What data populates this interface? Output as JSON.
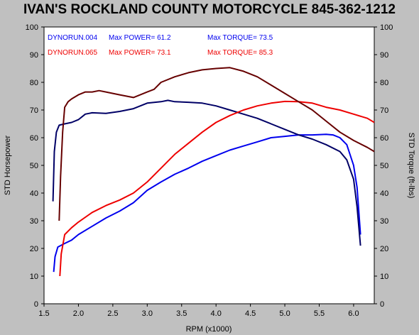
{
  "chart_data": {
    "type": "line",
    "title": "IVAN'S ROCKLAND COUNTY MOTORCYCLE 845-362-1212",
    "xlabel": "RPM (x1000)",
    "ylabel_left": "STD Horsepower",
    "ylabel_right": "STD Torque (ft-lbs)",
    "xlim": [
      1.5,
      6.3
    ],
    "ylim": [
      0,
      100
    ],
    "x_ticks": [
      "1.5",
      "2.0",
      "2.5",
      "3.0",
      "3.5",
      "4.0",
      "4.5",
      "5.0",
      "5.5",
      "6.0"
    ],
    "y_ticks": [
      "0",
      "10",
      "20",
      "30",
      "40",
      "50",
      "60",
      "70",
      "80",
      "90",
      "100"
    ],
    "grid": false,
    "legend_rows": [
      {
        "run": "DYNORUN.004",
        "power": "Max POWER= 61.2",
        "torque": "Max TORQUE= 73.5",
        "color": "#0000ee"
      },
      {
        "run": "DYNORUN.065",
        "power": "Max POWER= 73.1",
        "torque": "Max TORQUE= 85.3",
        "color": "#ee0000"
      }
    ],
    "series": [
      {
        "run": "DYNORUN.004",
        "measure": "power",
        "color": "#0000ee",
        "x": [
          1.64,
          1.66,
          1.7,
          1.8,
          1.9,
          2.0,
          2.2,
          2.4,
          2.6,
          2.8,
          3.0,
          3.2,
          3.4,
          3.6,
          3.8,
          4.0,
          4.2,
          4.4,
          4.6,
          4.8,
          5.0,
          5.2,
          5.4,
          5.6,
          5.7,
          5.8,
          5.9,
          6.0,
          6.05,
          6.1
        ],
        "y": [
          11.5,
          17,
          20.5,
          21.8,
          23,
          25,
          28,
          31,
          33.5,
          36.5,
          41,
          44,
          46.8,
          49,
          51.5,
          53.5,
          55.5,
          57,
          58.5,
          60,
          60.5,
          61,
          61,
          61.2,
          61,
          60,
          57.5,
          50,
          42,
          25
        ]
      },
      {
        "run": "DYNORUN.004",
        "measure": "torque",
        "color": "#000066",
        "x": [
          1.63,
          1.65,
          1.68,
          1.72,
          1.8,
          1.9,
          2.0,
          2.1,
          2.2,
          2.4,
          2.6,
          2.8,
          3.0,
          3.2,
          3.3,
          3.4,
          3.6,
          3.8,
          4.0,
          4.2,
          4.4,
          4.6,
          4.8,
          5.0,
          5.2,
          5.4,
          5.6,
          5.8,
          5.9,
          6.0,
          6.05,
          6.1
        ],
        "y": [
          37,
          55,
          62,
          64.5,
          65,
          65.5,
          66.5,
          68.5,
          69,
          68.8,
          69.5,
          70.5,
          72.5,
          73,
          73.5,
          73,
          72.8,
          72.5,
          71.5,
          70,
          68.5,
          67,
          65,
          63,
          61,
          59.5,
          57.5,
          55,
          52,
          45,
          35,
          21
        ]
      },
      {
        "run": "DYNORUN.065",
        "measure": "power",
        "color": "#ee0000",
        "x": [
          1.73,
          1.75,
          1.8,
          1.9,
          2.0,
          2.2,
          2.4,
          2.6,
          2.8,
          3.0,
          3.2,
          3.4,
          3.6,
          3.8,
          4.0,
          4.2,
          4.4,
          4.6,
          4.8,
          5.0,
          5.2,
          5.4,
          5.6,
          5.8,
          6.0,
          6.2,
          6.3
        ],
        "y": [
          10,
          18,
          25,
          27.5,
          29.5,
          33,
          35.5,
          37.5,
          40,
          44,
          49,
          54,
          58,
          62,
          65.5,
          68,
          70,
          71.5,
          72.5,
          73.1,
          73,
          72.5,
          71,
          70,
          68.5,
          67,
          65.5
        ]
      },
      {
        "run": "DYNORUN.065",
        "measure": "torque",
        "color": "#660000",
        "x": [
          1.72,
          1.74,
          1.77,
          1.8,
          1.85,
          1.9,
          2.0,
          2.1,
          2.2,
          2.3,
          2.4,
          2.6,
          2.8,
          3.0,
          3.1,
          3.2,
          3.4,
          3.6,
          3.8,
          4.0,
          4.2,
          4.4,
          4.6,
          4.8,
          5.0,
          5.2,
          5.4,
          5.6,
          5.8,
          6.0,
          6.2,
          6.3
        ],
        "y": [
          30,
          46,
          62,
          71,
          73,
          74,
          75.5,
          76.5,
          76.5,
          77,
          76.5,
          75.5,
          74.5,
          76.5,
          77.5,
          80,
          82,
          83.5,
          84.5,
          85,
          85.3,
          84,
          82,
          79,
          76,
          73,
          70,
          66,
          62,
          59,
          56.5,
          55
        ]
      }
    ]
  }
}
